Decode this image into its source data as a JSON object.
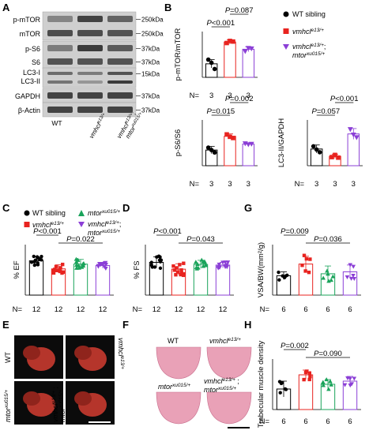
{
  "colors": {
    "wt": "#000000",
    "vmhcl": "#e8231f",
    "mtor": "#19a35a",
    "double": "#8b3fd6",
    "band_bg": "#cfcfcf",
    "band": "#2a2a2a",
    "heart": "#b5352b",
    "histo": "#e9a1b7"
  },
  "panel_letters": [
    "A",
    "B",
    "C",
    "D",
    "E",
    "F",
    "G",
    "H"
  ],
  "blot": {
    "rows": [
      {
        "label": "p-mTOR",
        "kda": "250kDa"
      },
      {
        "label": "mTOR",
        "kda": "250kDa"
      },
      {
        "label": "p-S6",
        "kda": "37kDa"
      },
      {
        "label": "S6",
        "kda": "37kDa"
      },
      {
        "label": "LC3-I",
        "kda": "15kDa"
      },
      {
        "label": "LC3-II",
        "kda": ""
      },
      {
        "label": "GAPDH",
        "kda": "37kDa"
      },
      {
        "label": "β-Actin",
        "kda": "37kDa"
      }
    ],
    "lanes": [
      "WT",
      "vmhcl",
      "vmhcl;mtor"
    ]
  },
  "legend": {
    "wt": "WT sibling",
    "vmhcl": "vmhcl",
    "vmhcl_sup": "e13/+",
    "double_a": "vmhcl",
    "double_a_sup": "e13/+",
    "double_b": "mtor",
    "double_b_sup": "xu015/+",
    "mtor": "mtor",
    "mtor_sup": "xu015/+"
  },
  "n_prefix": "N=",
  "chart_data": [
    {
      "panel": "B1",
      "type": "bar",
      "ylabel": "p-mTOR/mTOR",
      "categories": [
        "WT sibling",
        "vmhcl e13/+",
        "vmhcl e13/+; mtor xu015/+"
      ],
      "values": [
        0.65,
        1.7,
        1.35
      ],
      "errors": [
        0.2,
        0.1,
        0.12
      ],
      "points": [
        [
          0.85,
          0.7,
          0.4
        ],
        [
          1.65,
          1.75,
          1.72
        ],
        [
          1.25,
          1.4,
          1.38
        ]
      ],
      "n": [
        "3",
        "3",
        "3"
      ],
      "ylim": [
        0,
        2.2
      ],
      "brackets": [
        {
          "from": 0,
          "to": 1,
          "label": "P<0.001"
        },
        {
          "from": 1,
          "to": 2,
          "label": "P=0.087"
        }
      ]
    },
    {
      "panel": "B2",
      "type": "bar",
      "ylabel": "p-S6/S6",
      "categories": [
        "WT sibling",
        "vmhcl e13/+",
        "vmhcl e13/+; mtor xu015/+"
      ],
      "values": [
        0.65,
        1.22,
        0.9
      ],
      "errors": [
        0.15,
        0.1,
        0.05
      ],
      "points": [
        [
          0.75,
          0.65,
          0.55
        ],
        [
          1.3,
          1.2,
          1.15
        ],
        [
          0.92,
          0.88,
          0.9
        ]
      ],
      "n": [
        "3",
        "3",
        "3"
      ],
      "ylim": [
        0,
        1.9
      ],
      "brackets": [
        {
          "from": 0,
          "to": 1,
          "label": "P=0.015"
        },
        {
          "from": 1,
          "to": 2,
          "label": "P=0.002"
        }
      ]
    },
    {
      "panel": "B3",
      "type": "bar",
      "ylabel": "LC3-II/GAPDH",
      "categories": [
        "WT sibling",
        "vmhcl e13/+",
        "vmhcl e13/+; mtor xu015/+"
      ],
      "values": [
        0.62,
        0.35,
        1.18
      ],
      "errors": [
        0.15,
        0.08,
        0.2
      ],
      "points": [
        [
          0.72,
          0.6,
          0.5
        ],
        [
          0.32,
          0.4,
          0.3
        ],
        [
          1.35,
          1.15,
          1.05
        ]
      ],
      "n": [
        "3",
        "3",
        "3"
      ],
      "ylim": [
        0,
        1.7
      ],
      "brackets": [
        {
          "from": 0,
          "to": 1,
          "label": "P=0.057"
        },
        {
          "from": 1,
          "to": 2,
          "label": "P<0.001"
        }
      ]
    },
    {
      "panel": "C",
      "type": "bar",
      "ylabel": "% EF",
      "categories": [
        "WT sibling",
        "vmhcl e13/+",
        "mtor xu015/+",
        "vmhcl e13/+; mtor xu015/+"
      ],
      "values": [
        51,
        39,
        46,
        44
      ],
      "errors": [
        6,
        6,
        7,
        4
      ],
      "n": [
        "12",
        "12",
        "12",
        "12"
      ],
      "ylim": [
        0,
        75
      ],
      "brackets": [
        {
          "from": 0,
          "to": 1,
          "label": "P<0.001"
        },
        {
          "from": 1,
          "to": 3,
          "label": "P=0.022"
        }
      ]
    },
    {
      "panel": "D",
      "type": "bar",
      "ylabel": "% FS",
      "categories": [
        "WT sibling",
        "vmhcl e13/+",
        "mtor xu015/+",
        "vmhcl e13/+; mtor xu015/+"
      ],
      "values": [
        24,
        19,
        22.5,
        22
      ],
      "errors": [
        4,
        4,
        3,
        2
      ],
      "n": [
        "12",
        "12",
        "12",
        "12"
      ],
      "ylim": [
        0,
        37
      ],
      "brackets": [
        {
          "from": 0,
          "to": 1,
          "label": "P<0.001"
        },
        {
          "from": 1,
          "to": 3,
          "label": "P=0.043"
        }
      ]
    },
    {
      "panel": "G",
      "type": "bar",
      "ylabel": "VSA/BW(mm²/g)",
      "categories": [
        "WT sibling",
        "vmhcl e13/+",
        "mtor xu015/+",
        "vmhcl e13/+; mtor xu015/+"
      ],
      "values": [
        4.0,
        4.6,
        4.1,
        4.2
      ],
      "errors": [
        0.2,
        0.4,
        0.4,
        0.35
      ],
      "n": [
        "6",
        "6",
        "6",
        "6"
      ],
      "ylim": [
        3.0,
        5.6
      ],
      "brackets": [
        {
          "from": 0,
          "to": 1,
          "label": "P=0.009"
        },
        {
          "from": 1,
          "to": 3,
          "label": "P=0.036"
        }
      ]
    },
    {
      "panel": "H",
      "type": "bar",
      "ylabel": "Trabecular muscle density",
      "categories": [
        "WT sibling",
        "vmhcl e13/+",
        "mtor xu015/+",
        "vmhcl e13/+; mtor xu015/+"
      ],
      "values": [
        0.63,
        0.72,
        0.66,
        0.68
      ],
      "errors": [
        0.05,
        0.03,
        0.03,
        0.03
      ],
      "n": [
        "6",
        "6",
        "6",
        "6"
      ],
      "ylim": [
        0.5,
        0.82
      ],
      "brackets": [
        {
          "from": 0,
          "to": 1,
          "label": "P=0.002"
        },
        {
          "from": 1,
          "to": 3,
          "label": "P=0.090"
        }
      ]
    }
  ],
  "panel_e": {
    "labels": [
      {
        "base": "WT",
        "sup": ""
      },
      {
        "base": "vmhcl",
        "sup": "e13/+"
      },
      {
        "base": "mtor",
        "sup": "xu015/+"
      },
      {
        "base": "vmhcl",
        "sup": "e13/+",
        "base2": "mtor",
        "sup2": "xu015/+"
      }
    ]
  },
  "panel_f": {
    "labels": [
      {
        "base": "WT",
        "sup": ""
      },
      {
        "base": "vmhcl",
        "sup": "e13/+"
      },
      {
        "base": "mtor",
        "sup": "xu015/+"
      },
      {
        "base": "vmhcl",
        "sup": "e13/+",
        "base2": "mtor",
        "sup2": "xu015/+"
      }
    ]
  }
}
